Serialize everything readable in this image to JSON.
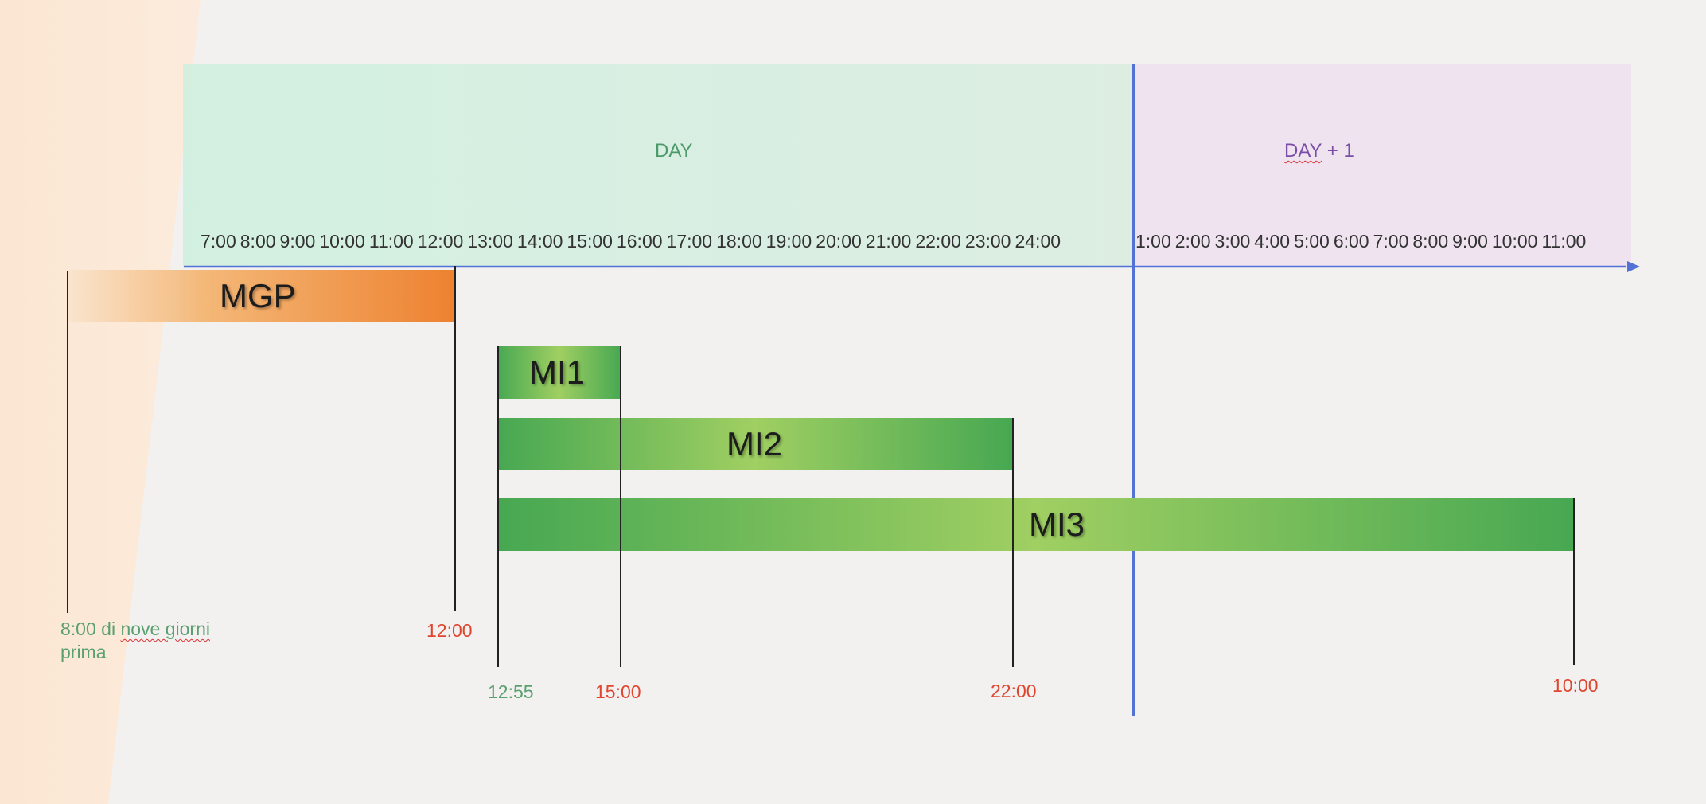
{
  "colors": {
    "axis": "#5272d6",
    "mgp_start": "#f7dcbc",
    "mgp_end": "#ed8230",
    "mi_edge": "#47a852",
    "mi_center": "#a0cf62",
    "green_text": "#5aa070",
    "red_text": "#e0452f"
  },
  "bands": {
    "day_label": "DAY",
    "day1_label_word": "DAY",
    "day1_label_rest": " + 1"
  },
  "hours_day": [
    "7:00",
    "8:00",
    "9:00",
    "10:00",
    "11:00",
    "12:00",
    "13:00",
    "14:00",
    "15:00",
    "16:00",
    "17:00",
    "18:00",
    "19:00",
    "20:00",
    "21:00",
    "22:00",
    "23:00",
    "24:00"
  ],
  "hours_next": [
    "1:00",
    "2:00",
    "3:00",
    "4:00",
    "5:00",
    "6:00",
    "7:00",
    "8:00",
    "9:00",
    "10:00",
    "11:00"
  ],
  "bars": {
    "mgp": "MGP",
    "mi1": "MI1",
    "mi2": "MI2",
    "mi3": "MI3"
  },
  "times": {
    "mgp_start_a": "8:00 di ",
    "mgp_start_b": "nove giorni",
    "mgp_start_c": "prima",
    "mgp_end": "12:00",
    "mi_start": "12:55",
    "mi1_end": "15:00",
    "mi2_end": "22:00",
    "mi3_end": "10:00"
  }
}
